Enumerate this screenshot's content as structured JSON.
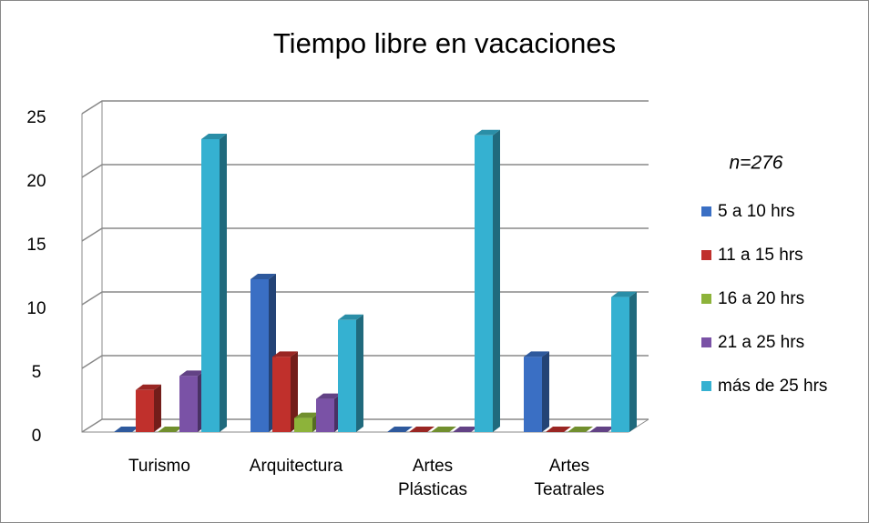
{
  "chart_data": {
    "type": "bar3d",
    "title": "Tiempo libre en vacaciones",
    "annotation": "n=276",
    "categories": [
      "Turismo",
      "Arquitectura",
      "Artes Plásticas",
      "Artes Teatrales"
    ],
    "series": [
      {
        "name": "5 a 10 hrs",
        "color": "#3a6fc4",
        "values": [
          0,
          12,
          0,
          5.9
        ]
      },
      {
        "name": "11 a 15 hrs",
        "color": "#c0302c",
        "values": [
          3.3,
          5.9,
          0,
          0
        ]
      },
      {
        "name": "16 a 20 hrs",
        "color": "#8db33a",
        "values": [
          0,
          1.1,
          0,
          0
        ]
      },
      {
        "name": "21 a 25 hrs",
        "color": "#7a52a6",
        "values": [
          4.4,
          2.6,
          0,
          0
        ]
      },
      {
        "name": "más de 25 hrs",
        "color": "#35b1d1",
        "values": [
          23,
          8.8,
          23.3,
          10.6
        ]
      }
    ],
    "ylim": [
      0,
      25
    ],
    "yticks": [
      0,
      5,
      10,
      15,
      20,
      25
    ],
    "grid": true,
    "legend": "right"
  }
}
